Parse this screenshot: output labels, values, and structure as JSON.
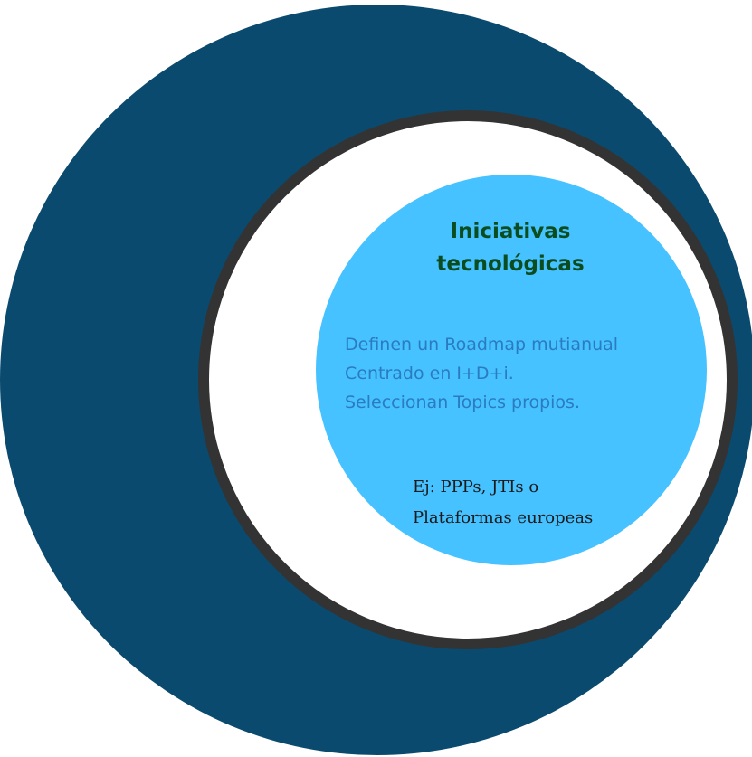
{
  "diagram": {
    "title": {
      "line1": "Iniciativas",
      "line2": "tecnológicas"
    },
    "description": [
      "Definen un Roadmap mutianual",
      "Centrado en I+D+i.",
      "Seleccionan Topics propios."
    ],
    "example": [
      "Ej: PPPs, JTIs o",
      "Plataformas europeas"
    ],
    "colors": {
      "outer_circle": "#0b4a6f",
      "ring": "#333333",
      "inner_circle": "#45c2ff",
      "title_text": "#0b4d1f",
      "description_text": "#2b7bbf"
    }
  }
}
